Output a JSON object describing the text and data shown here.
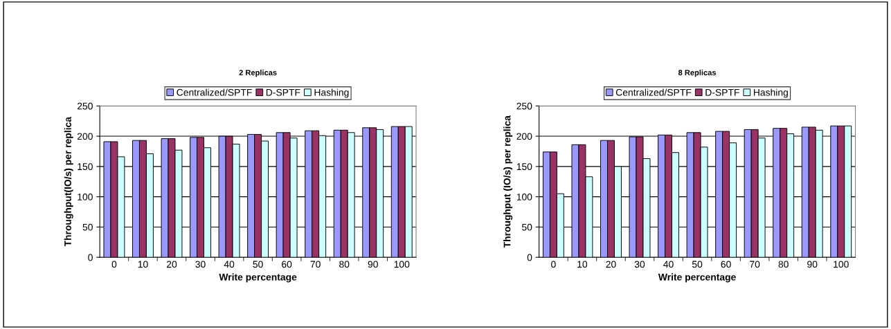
{
  "chart_data": [
    {
      "type": "bar",
      "title": "2 Replicas",
      "xlabel": "Write percentage",
      "ylabel": "Throughput(IO/s) per replica",
      "categories": [
        "0",
        "10",
        "20",
        "30",
        "40",
        "50",
        "60",
        "70",
        "80",
        "90",
        "100"
      ],
      "ylim": [
        0,
        250
      ],
      "yticks": [
        0,
        50,
        100,
        150,
        200,
        250
      ],
      "grid": "y",
      "legend": "top",
      "series": [
        {
          "name": "Centralized/SPTF",
          "color": "#9999ff",
          "values": [
            191,
            193,
            196,
            198,
            200,
            203,
            206,
            209,
            210,
            214,
            216
          ]
        },
        {
          "name": "D-SPTF",
          "color": "#993366",
          "values": [
            191,
            193,
            196,
            198,
            200,
            203,
            206,
            209,
            210,
            214,
            216
          ]
        },
        {
          "name": "Hashing",
          "color": "#ccffff",
          "values": [
            166,
            171,
            177,
            181,
            187,
            192,
            197,
            201,
            206,
            211,
            216
          ]
        }
      ]
    },
    {
      "type": "bar",
      "title": "8 Replicas",
      "xlabel": "Write percentage",
      "ylabel": "Throughput (IO/s) per replica",
      "categories": [
        "0",
        "10",
        "20",
        "30",
        "40",
        "50",
        "60",
        "70",
        "80",
        "90",
        "100"
      ],
      "ylim": [
        0,
        250
      ],
      "yticks": [
        0,
        50,
        100,
        150,
        200,
        250
      ],
      "grid": "y",
      "legend": "top",
      "series": [
        {
          "name": "Centralized/SPTF",
          "color": "#9999ff",
          "values": [
            174,
            186,
            193,
            199,
            202,
            206,
            208,
            211,
            213,
            215,
            217
          ]
        },
        {
          "name": "D-SPTF",
          "color": "#993366",
          "values": [
            174,
            186,
            193,
            199,
            202,
            206,
            208,
            211,
            213,
            215,
            217
          ]
        },
        {
          "name": "Hashing",
          "color": "#ccffff",
          "values": [
            105,
            133,
            150,
            163,
            173,
            182,
            189,
            197,
            204,
            210,
            217
          ]
        }
      ]
    }
  ]
}
